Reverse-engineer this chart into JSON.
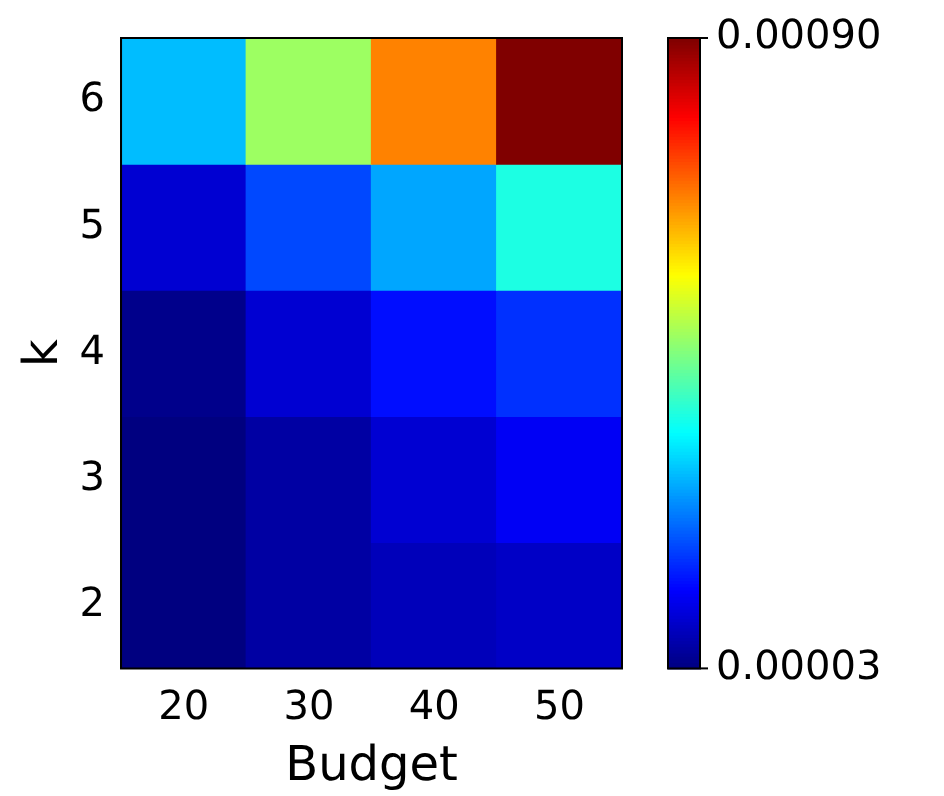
{
  "chart_data": {
    "type": "heatmap",
    "xlabel": "Budget",
    "ylabel": "k",
    "categories": [
      "20",
      "30",
      "40",
      "50"
    ],
    "y_categories": [
      "6",
      "5",
      "4",
      "3",
      "2"
    ],
    "cells": [
      [
        0.0003,
        0.00049,
        0.00068,
        0.0009
      ],
      [
        0.0001,
        0.0002,
        0.00028,
        0.00038
      ],
      [
        4e-05,
        0.0001,
        0.00015,
        0.00018
      ],
      [
        3e-05,
        6e-05,
        0.0001,
        0.00013
      ],
      [
        3e-05,
        6e-05,
        8e-05,
        9e-05
      ]
    ],
    "clim": [
      3e-05,
      0.0009
    ],
    "cticks": [
      {
        "value": 3e-05,
        "label": "0.00003"
      },
      {
        "value": 0.0009,
        "label": "0.00090"
      }
    ]
  }
}
